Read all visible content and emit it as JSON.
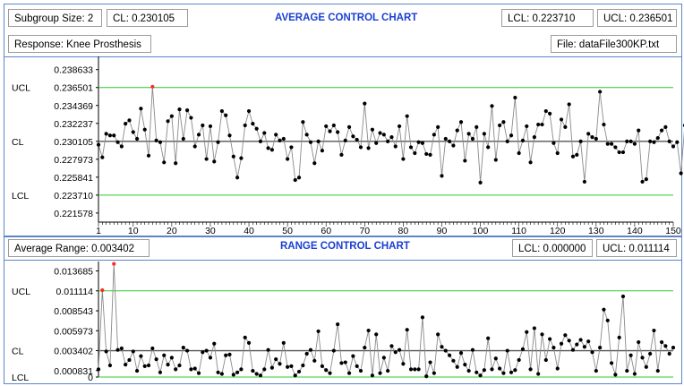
{
  "avg_panel": {
    "subgroup_size_label": "Subgroup Size:  2",
    "cl_label": "CL:  0.230105",
    "title": "AVERAGE CONTROL CHART",
    "lcl_label": "LCL:  0.223710",
    "ucl_label": "UCL:  0.236501",
    "response_label": "Response:  Knee Prosthesis",
    "file_label": "File:  dataFile300KP.txt"
  },
  "range_panel": {
    "avg_range_label": "Average Range:  0.003402",
    "title": "RANGE CONTROL CHART",
    "lcl_label": "LCL:  0.000000",
    "ucl_label": "UCL:  0.011114"
  },
  "colors": {
    "limit_line": "#2ecc2e",
    "center_line": "#555555",
    "series": "#8a8a8a",
    "point": "#000000",
    "out_of_control": "#ff2a2a",
    "title": "#1a3fd1",
    "frame": "#5b85c9"
  },
  "chart_data": [
    {
      "type": "line",
      "title": "AVERAGE CONTROL CHART",
      "xlim": [
        1,
        150
      ],
      "ylim": [
        0.2205,
        0.2402
      ],
      "x_ticks": [
        1,
        10,
        20,
        30,
        40,
        50,
        60,
        70,
        80,
        90,
        100,
        110,
        120,
        130,
        140,
        150
      ],
      "y_ticks": [
        {
          "value": 0.238633,
          "label": "0.238633"
        },
        {
          "value": 0.236501,
          "label": "0.236501",
          "side_label": "UCL"
        },
        {
          "value": 0.234369,
          "label": "0.234369"
        },
        {
          "value": 0.232237,
          "label": "0.232237"
        },
        {
          "value": 0.230105,
          "label": "0.230105",
          "side_label": "CL"
        },
        {
          "value": 0.227973,
          "label": "0.227973"
        },
        {
          "value": 0.225841,
          "label": "0.225841"
        },
        {
          "value": 0.22371,
          "label": "0.223710",
          "side_label": "LCL"
        },
        {
          "value": 0.221578,
          "label": "0.221578"
        }
      ],
      "limits": {
        "ucl": 0.236501,
        "cl": 0.230105,
        "lcl": 0.22371
      },
      "values": [
        0.2297,
        0.2282,
        0.231,
        0.2308,
        0.2308,
        0.23,
        0.2295,
        0.2322,
        0.2326,
        0.2312,
        0.2304,
        0.234,
        0.2315,
        0.2284,
        0.2366,
        0.2302,
        0.23,
        0.2276,
        0.2325,
        0.2331,
        0.2275,
        0.2339,
        0.2304,
        0.2338,
        0.2329,
        0.2295,
        0.2309,
        0.232,
        0.228,
        0.2319,
        0.2277,
        0.23,
        0.2337,
        0.2332,
        0.2308,
        0.2283,
        0.2258,
        0.2281,
        0.232,
        0.2337,
        0.2322,
        0.2316,
        0.2301,
        0.2311,
        0.2293,
        0.2291,
        0.2309,
        0.2302,
        0.2304,
        0.228,
        0.2294,
        0.2255,
        0.2258,
        0.2324,
        0.2309,
        0.23,
        0.2275,
        0.2301,
        0.229,
        0.2319,
        0.2313,
        0.232,
        0.2312,
        0.2285,
        0.2302,
        0.2318,
        0.2307,
        0.2303,
        0.2294,
        0.2346,
        0.2293,
        0.2315,
        0.2299,
        0.2311,
        0.2309,
        0.2301,
        0.2306,
        0.2295,
        0.2319,
        0.228,
        0.2331,
        0.2294,
        0.2287,
        0.23,
        0.2299,
        0.2286,
        0.2285,
        0.2309,
        0.2318,
        0.226,
        0.2304,
        0.2301,
        0.2296,
        0.2314,
        0.2324,
        0.2278,
        0.231,
        0.2304,
        0.2318,
        0.2252,
        0.231,
        0.2294,
        0.2343,
        0.2279,
        0.232,
        0.2324,
        0.2301,
        0.2308,
        0.2353,
        0.2287,
        0.2302,
        0.2319,
        0.2276,
        0.2306,
        0.2321,
        0.2321,
        0.2337,
        0.2334,
        0.2299,
        0.2287,
        0.2327,
        0.2318,
        0.2345,
        0.2283,
        0.2285,
        0.2301,
        0.2253,
        0.231,
        0.2306,
        0.2304,
        0.236,
        0.2321,
        0.2298,
        0.2298,
        0.2294,
        0.2288,
        0.2288,
        0.2301,
        0.2301,
        0.2298,
        0.2314,
        0.2253,
        0.2256,
        0.2301,
        0.23,
        0.2305,
        0.2314,
        0.2318,
        0.2301,
        0.2295,
        0.23,
        0.2263,
        0.232,
        0.2302,
        0.2255
      ]
    },
    {
      "type": "line",
      "title": "RANGE CONTROL CHART",
      "xlim": [
        1,
        150
      ],
      "ylim": [
        0,
        0.0149
      ],
      "y_ticks": [
        {
          "value": 0.013685,
          "label": "0.013685"
        },
        {
          "value": 0.011114,
          "label": "0.011114",
          "side_label": "UCL"
        },
        {
          "value": 0.008543,
          "label": "0.008543"
        },
        {
          "value": 0.005973,
          "label": "0.005973"
        },
        {
          "value": 0.003402,
          "label": "0.003402",
          "side_label": "CL"
        },
        {
          "value": 0.000831,
          "label": "0.000831"
        },
        {
          "value": 0.0,
          "label": "0",
          "side_label": "LCL"
        }
      ],
      "limits": {
        "ucl": 0.011114,
        "cl": 0.003402,
        "lcl": 0.0
      },
      "values": [
        0.001,
        0.0112,
        0.0033,
        0.0015,
        0.0146,
        0.0035,
        0.0037,
        0.0016,
        0.0022,
        0.0033,
        0.0008,
        0.0027,
        0.0014,
        0.0015,
        0.0037,
        0.0023,
        0.0006,
        0.0028,
        0.0016,
        0.0025,
        0.001,
        0.0015,
        0.0038,
        0.0034,
        0.001,
        0.0011,
        0.0005,
        0.0032,
        0.0034,
        0.0025,
        0.0043,
        0.0006,
        0.0004,
        0.0028,
        0.0029,
        0.0003,
        0.0006,
        0.001,
        0.0051,
        0.0044,
        0.0008,
        0.0004,
        0.0002,
        0.001,
        0.0035,
        0.0012,
        0.0023,
        0.0017,
        0.0044,
        0.0013,
        0.0014,
        0.0002,
        0.0007,
        0.0015,
        0.003,
        0.0035,
        0.0021,
        0.0059,
        0.0014,
        0.0009,
        0.0005,
        0.0034,
        0.0068,
        0.0018,
        0.0019,
        0.0005,
        0.0027,
        0.0014,
        0.0008,
        0.0038,
        0.006,
        0.0002,
        0.0055,
        0.0005,
        0.0025,
        0.0008,
        0.004,
        0.0032,
        0.0035,
        0.0017,
        0.0061,
        0.001,
        0.001,
        0.001,
        0.0077,
        0.0001,
        0.0019,
        0.0005,
        0.0055,
        0.0039,
        0.0034,
        0.0028,
        0.0021,
        0.0013,
        0.0031,
        0.0016,
        0.0008,
        0.0035,
        0.0006,
        0.0002,
        0.0009,
        0.005,
        0.001,
        0.0024,
        0.0011,
        0.0005,
        0.0034,
        0.0006,
        0.0009,
        0.0022,
        0.0036,
        0.0058,
        0.001,
        0.0063,
        0.0004,
        0.0055,
        0.0022,
        0.0049,
        0.0038,
        0.0011,
        0.0043,
        0.0054,
        0.0047,
        0.0035,
        0.0042,
        0.0048,
        0.0039,
        0.0046,
        0.0032,
        0.0008,
        0.0038,
        0.0087,
        0.0073,
        0.0018,
        0.0003,
        0.0051,
        0.0104,
        0.0008,
        0.0028,
        0.0004,
        0.0045,
        0.0025,
        0.0013,
        0.003,
        0.006,
        0.0008,
        0.0045,
        0.004,
        0.003,
        0.0038
      ]
    }
  ]
}
